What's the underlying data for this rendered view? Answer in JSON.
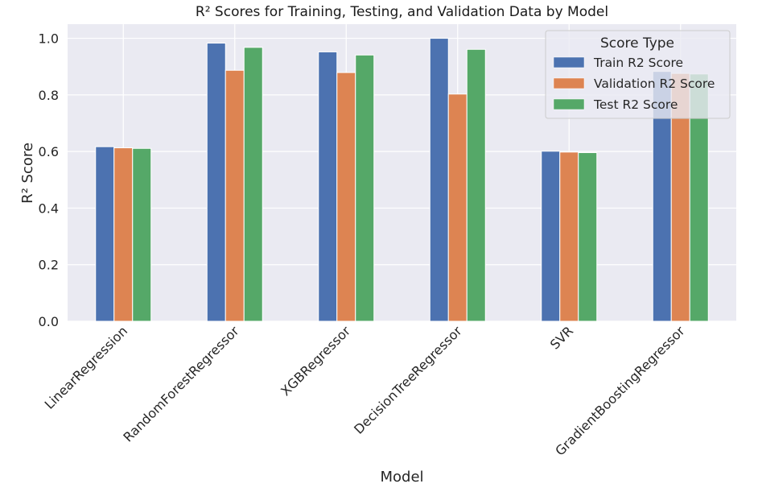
{
  "chart_data": {
    "type": "bar",
    "title": "R² Scores for Training, Testing, and Validation Data by Model",
    "xlabel": "Model",
    "ylabel": "R² Score",
    "ylim": [
      0,
      1.05
    ],
    "yticks": [
      "0.0",
      "0.2",
      "0.4",
      "0.6",
      "0.8",
      "1.0"
    ],
    "grid": true,
    "legend_title": "Score Type",
    "legend_position": "top-right",
    "categories": [
      "LinearRegression",
      "RandomForestRegressor",
      "XGBRegressor",
      "DecisionTreeRegressor",
      "SVR",
      "GradientBoostingRegressor"
    ],
    "series": [
      {
        "name": "Train R2 Score",
        "color": "#4c72b0",
        "values": [
          0.617,
          0.983,
          0.952,
          1.0,
          0.601,
          0.883
        ]
      },
      {
        "name": "Validation R2 Score",
        "color": "#dd8452",
        "values": [
          0.613,
          0.887,
          0.879,
          0.803,
          0.598,
          0.876
        ]
      },
      {
        "name": "Test R2 Score",
        "color": "#55a868",
        "values": [
          0.611,
          0.968,
          0.941,
          0.961,
          0.596,
          0.874
        ]
      }
    ]
  }
}
